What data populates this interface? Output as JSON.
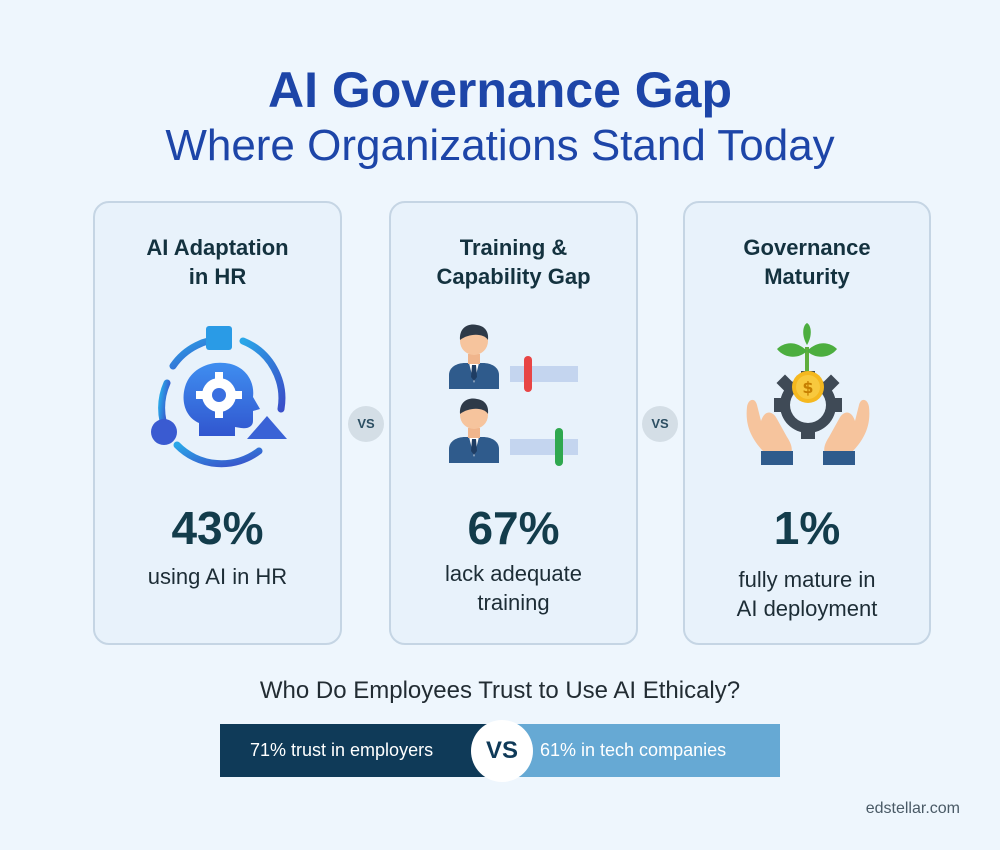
{
  "header": {
    "title": "AI Governance Gap",
    "subtitle": "Where Organizations Stand Today"
  },
  "cards": [
    {
      "title_line1": "AI Adaptation",
      "title_line2": "in HR",
      "icon": "ai-head-gear-icon",
      "value": "43%",
      "caption_line1": "using AI in HR",
      "caption_line2": ""
    },
    {
      "title_line1": "Training &",
      "title_line2": "Capability Gap",
      "icon": "people-skill-sliders-icon",
      "value": "67%",
      "caption_line1": "lack adequate",
      "caption_line2": "training"
    },
    {
      "title_line1": "Governance",
      "title_line2": "Maturity",
      "icon": "hands-gear-growth-icon",
      "value": "1%",
      "caption_line1": "fully mature in",
      "caption_line2": "AI deployment"
    }
  ],
  "vs_label": "VS",
  "trust": {
    "question": "Who Do Employees Trust to Use AI Ethicaly?",
    "employers": "71%  trust in employers",
    "tech": "61% in tech companies",
    "vs": "VS"
  },
  "watermark": "edstellar.com",
  "colors": {
    "title": "#1d45a8",
    "dark_navy": "#0f3a58",
    "light_blue": "#66a9d4",
    "card_bg": "#e8f2fb"
  }
}
